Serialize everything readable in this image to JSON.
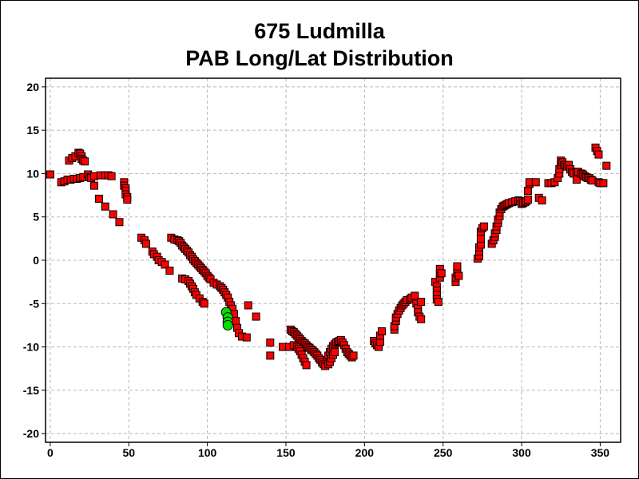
{
  "chart_data": {
    "type": "scatter",
    "title": "675 Ludmilla",
    "subtitle": "PAB Long/Lat Distribution",
    "xlabel": "",
    "ylabel": "",
    "xlim": [
      -3,
      363
    ],
    "ylim": [
      -21,
      21
    ],
    "xticks": [
      0,
      50,
      100,
      150,
      200,
      250,
      300,
      350
    ],
    "yticks": [
      -20,
      -15,
      -10,
      -5,
      0,
      5,
      10,
      15,
      20
    ],
    "grid": true,
    "legend": "none",
    "series": [
      {
        "marker": "square",
        "color": "#ff0000",
        "points": [
          [
            0,
            9.9
          ],
          [
            7,
            9.0
          ],
          [
            9,
            9.1
          ],
          [
            11,
            9.3
          ],
          [
            12,
            11.5
          ],
          [
            13,
            9.3
          ],
          [
            14,
            11.8
          ],
          [
            15,
            9.4
          ],
          [
            16,
            12.0
          ],
          [
            17,
            9.4
          ],
          [
            18,
            12.4
          ],
          [
            19,
            12.3
          ],
          [
            19,
            9.5
          ],
          [
            20,
            12.0
          ],
          [
            20,
            11.7
          ],
          [
            21,
            9.6
          ],
          [
            21,
            11.5
          ],
          [
            22,
            11.4
          ],
          [
            24,
            9.9
          ],
          [
            25,
            9.6
          ],
          [
            26,
            9.5
          ],
          [
            28,
            9.7
          ],
          [
            28,
            8.6
          ],
          [
            31,
            7.1
          ],
          [
            32,
            9.8
          ],
          [
            35,
            9.8
          ],
          [
            35,
            6.2
          ],
          [
            37,
            9.8
          ],
          [
            39,
            9.7
          ],
          [
            40,
            5.3
          ],
          [
            44,
            4.4
          ],
          [
            47,
            9.0
          ],
          [
            47,
            8.6
          ],
          [
            48,
            8.3
          ],
          [
            48,
            8.0
          ],
          [
            48,
            7.6
          ],
          [
            49,
            7.3
          ],
          [
            49,
            7.0
          ],
          [
            58,
            2.6
          ],
          [
            60,
            2.3
          ],
          [
            61,
            1.9
          ],
          [
            65,
            1.0
          ],
          [
            66,
            0.7
          ],
          [
            68,
            0.4
          ],
          [
            69,
            0.0
          ],
          [
            71,
            -0.2
          ],
          [
            73,
            -0.5
          ],
          [
            76,
            -1.2
          ],
          [
            77,
            2.6
          ],
          [
            79,
            2.4
          ],
          [
            81,
            2.3
          ],
          [
            82,
            2.2
          ],
          [
            83,
            2.0
          ],
          [
            84,
            1.7
          ],
          [
            85,
            1.5
          ],
          [
            86,
            1.3
          ],
          [
            87,
            1.1
          ],
          [
            88,
            0.9
          ],
          [
            89,
            0.6
          ],
          [
            90,
            0.4
          ],
          [
            91,
            0.1
          ],
          [
            92,
            -0.1
          ],
          [
            93,
            -0.3
          ],
          [
            94,
            -0.5
          ],
          [
            95,
            -0.7
          ],
          [
            96,
            -0.9
          ],
          [
            97,
            -1.1
          ],
          [
            98,
            -1.3
          ],
          [
            99,
            -1.5
          ],
          [
            100,
            -1.8
          ],
          [
            101,
            -2.0
          ],
          [
            102,
            -2.2
          ],
          [
            104,
            -2.6
          ],
          [
            106,
            -2.8
          ],
          [
            108,
            -3.0
          ],
          [
            109,
            -3.2
          ],
          [
            110,
            -3.4
          ],
          [
            111,
            -3.7
          ],
          [
            112,
            -4.0
          ],
          [
            113,
            -4.3
          ],
          [
            114,
            -4.8
          ],
          [
            115,
            -5.2
          ],
          [
            116,
            -5.6
          ],
          [
            117,
            -6.2
          ],
          [
            118,
            -7.0
          ],
          [
            119,
            -7.8
          ],
          [
            120,
            -8.4
          ],
          [
            122,
            -8.8
          ],
          [
            125,
            -8.9
          ],
          [
            126,
            -5.2
          ],
          [
            131,
            -6.5
          ],
          [
            84,
            -2.1
          ],
          [
            86,
            -2.2
          ],
          [
            88,
            -2.4
          ],
          [
            89,
            -2.7
          ],
          [
            90,
            -3.0
          ],
          [
            91,
            -3.3
          ],
          [
            92,
            -3.7
          ],
          [
            93,
            -4.0
          ],
          [
            95,
            -4.4
          ],
          [
            97,
            -4.8
          ],
          [
            98,
            -5.0
          ],
          [
            140,
            -9.5
          ],
          [
            140,
            -11.0
          ],
          [
            148,
            -10.0
          ],
          [
            152,
            -10.0
          ],
          [
            153,
            -8.0
          ],
          [
            154,
            -8.2
          ],
          [
            155,
            -8.3
          ],
          [
            156,
            -8.5
          ],
          [
            157,
            -8.7
          ],
          [
            158,
            -8.9
          ],
          [
            159,
            -9.1
          ],
          [
            160,
            -9.3
          ],
          [
            161,
            -9.5
          ],
          [
            162,
            -9.6
          ],
          [
            163,
            -9.8
          ],
          [
            164,
            -10.0
          ],
          [
            165,
            -10.1
          ],
          [
            166,
            -10.3
          ],
          [
            167,
            -10.4
          ],
          [
            168,
            -10.6
          ],
          [
            169,
            -10.8
          ],
          [
            170,
            -11.0
          ],
          [
            171,
            -11.3
          ],
          [
            172,
            -11.5
          ],
          [
            173,
            -11.8
          ],
          [
            174,
            -12.0
          ],
          [
            175,
            -12.2
          ],
          [
            155,
            -9.8
          ],
          [
            157,
            -10.0
          ],
          [
            158,
            -10.2
          ],
          [
            159,
            -10.5
          ],
          [
            160,
            -10.9
          ],
          [
            161,
            -11.3
          ],
          [
            162,
            -11.7
          ],
          [
            163,
            -12.1
          ],
          [
            176,
            -11.5
          ],
          [
            177,
            -11.0
          ],
          [
            178,
            -10.6
          ],
          [
            179,
            -10.2
          ],
          [
            180,
            -9.9
          ],
          [
            181,
            -9.7
          ],
          [
            182,
            -9.5
          ],
          [
            183,
            -9.4
          ],
          [
            184,
            -9.3
          ],
          [
            185,
            -9.2
          ],
          [
            186,
            -9.5
          ],
          [
            187,
            -9.8
          ],
          [
            188,
            -10.2
          ],
          [
            189,
            -10.6
          ],
          [
            190,
            -10.8
          ],
          [
            191,
            -11.0
          ],
          [
            192,
            -11.2
          ],
          [
            193,
            -11.0
          ],
          [
            177,
            -12.0
          ],
          [
            178,
            -11.7
          ],
          [
            179,
            -11.3
          ],
          [
            180,
            -10.9
          ],
          [
            181,
            -10.6
          ],
          [
            206,
            -9.3
          ],
          [
            207,
            -9.6
          ],
          [
            208,
            -9.8
          ],
          [
            209,
            -10.0
          ],
          [
            210,
            -9.4
          ],
          [
            210,
            -8.7
          ],
          [
            211,
            -8.2
          ],
          [
            219,
            -8.0
          ],
          [
            219,
            -7.6
          ],
          [
            220,
            -7.0
          ],
          [
            220,
            -6.6
          ],
          [
            221,
            -6.2
          ],
          [
            222,
            -5.8
          ],
          [
            223,
            -5.5
          ],
          [
            224,
            -5.2
          ],
          [
            225,
            -5.0
          ],
          [
            226,
            -4.8
          ],
          [
            227,
            -4.6
          ],
          [
            229,
            -4.5
          ],
          [
            230,
            -4.3
          ],
          [
            232,
            -4.1
          ],
          [
            233,
            -5.0
          ],
          [
            234,
            -5.5
          ],
          [
            234,
            -6.0
          ],
          [
            235,
            -6.5
          ],
          [
            236,
            -6.8
          ],
          [
            236,
            -4.8
          ],
          [
            245,
            -2.5
          ],
          [
            246,
            -3.0
          ],
          [
            246,
            -3.5
          ],
          [
            246,
            -4.0
          ],
          [
            246,
            -4.5
          ],
          [
            247,
            -4.8
          ],
          [
            248,
            -2.0
          ],
          [
            248,
            -1.5
          ],
          [
            248,
            -1.0
          ],
          [
            249,
            -1.5
          ],
          [
            258,
            -2.5
          ],
          [
            258,
            -2.0
          ],
          [
            259,
            -1.5
          ],
          [
            259,
            -1.0
          ],
          [
            259,
            -0.7
          ],
          [
            260,
            -1.8
          ],
          [
            272,
            0.2
          ],
          [
            273,
            0.5
          ],
          [
            273,
            1.0
          ],
          [
            273,
            1.5
          ],
          [
            274,
            1.8
          ],
          [
            274,
            2.5
          ],
          [
            274,
            3.3
          ],
          [
            275,
            3.7
          ],
          [
            276,
            3.9
          ],
          [
            281,
            1.9
          ],
          [
            282,
            2.3
          ],
          [
            283,
            2.7
          ],
          [
            283,
            3.1
          ],
          [
            284,
            3.5
          ],
          [
            284,
            3.9
          ],
          [
            285,
            4.3
          ],
          [
            285,
            4.7
          ],
          [
            286,
            5.1
          ],
          [
            286,
            5.5
          ],
          [
            287,
            5.9
          ],
          [
            288,
            6.2
          ],
          [
            289,
            6.3
          ],
          [
            290,
            6.4
          ],
          [
            291,
            6.5
          ],
          [
            292,
            6.6
          ],
          [
            294,
            6.7
          ],
          [
            296,
            6.8
          ],
          [
            298,
            6.9
          ],
          [
            299,
            6.8
          ],
          [
            300,
            6.5
          ],
          [
            301,
            6.6
          ],
          [
            302,
            6.7
          ],
          [
            303,
            6.8
          ],
          [
            304,
            7.0
          ],
          [
            304,
            8.0
          ],
          [
            305,
            8.8
          ],
          [
            305,
            9.0
          ],
          [
            309,
            9.0
          ],
          [
            311,
            7.2
          ],
          [
            313,
            6.9
          ],
          [
            317,
            8.9
          ],
          [
            319,
            8.9
          ],
          [
            321,
            9.0
          ],
          [
            323,
            9.5
          ],
          [
            324,
            10.0
          ],
          [
            324,
            10.5
          ],
          [
            325,
            11.0
          ],
          [
            325,
            11.5
          ],
          [
            326,
            11.3
          ],
          [
            327,
            11.0
          ],
          [
            328,
            11.0
          ],
          [
            329,
            10.8
          ],
          [
            330,
            11.0
          ],
          [
            331,
            10.5
          ],
          [
            332,
            10.2
          ],
          [
            333,
            10.0
          ],
          [
            335,
            10.2
          ],
          [
            335,
            9.3
          ],
          [
            336,
            10.2
          ],
          [
            338,
            10.0
          ],
          [
            339,
            9.9
          ],
          [
            340,
            9.7
          ],
          [
            341,
            9.6
          ],
          [
            342,
            9.5
          ],
          [
            343,
            9.5
          ],
          [
            344,
            9.3
          ],
          [
            345,
            9.2
          ],
          [
            347,
            13.0
          ],
          [
            348,
            12.6
          ],
          [
            349,
            12.2
          ],
          [
            349,
            9.0
          ],
          [
            350,
            8.9
          ],
          [
            352,
            8.9
          ],
          [
            354,
            10.9
          ]
        ]
      },
      {
        "marker": "circle",
        "color": "#00e000",
        "points": [
          [
            112,
            -6.0
          ],
          [
            113,
            -6.6
          ],
          [
            113,
            -7.1
          ],
          [
            113,
            -7.5
          ]
        ]
      }
    ]
  }
}
